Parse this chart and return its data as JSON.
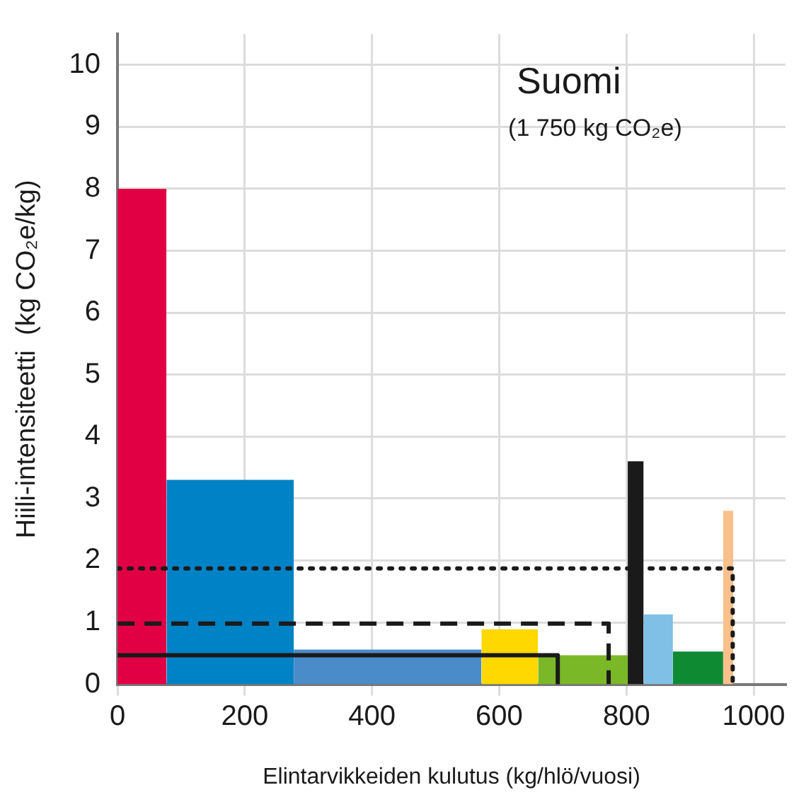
{
  "chart_data": {
    "type": "histogram",
    "xlabel": "Elintarvikkeiden kulutus (kg/hlö/vuosi)",
    "ylabel": "Hiili-intensiteetti  (kg CO₂e/kg)",
    "annotations": [
      "Suomi",
      "(1 750 kg CO₂e)"
    ],
    "bins": [
      0,
      77,
      277,
      572,
      661,
      802,
      827,
      873,
      952,
      968
    ],
    "values": [
      8,
      3.3,
      0.56,
      0.89,
      0.47,
      3.6,
      1.13,
      0.53,
      2.8
    ],
    "colors": [
      "#e20045",
      "#0083c6",
      "#4a8bc9",
      "#ffd800",
      "#7bb828",
      "#1a1a1a",
      "#80bfe6",
      "#0e8a33",
      "#f9c08c"
    ],
    "series": [
      {
        "type": "line",
        "x": [
          0,
          967,
          967
        ],
        "values": [
          1.87,
          1.87,
          0
        ],
        "color": "#1a1a1a",
        "line_style": "dotted"
      },
      {
        "type": "line",
        "x": [
          0,
          772,
          772
        ],
        "values": [
          0.98,
          0.98,
          0
        ],
        "color": "#1a1a1a",
        "line_style": "dashed"
      },
      {
        "type": "line",
        "x": [
          0,
          692,
          692
        ],
        "values": [
          0.47,
          0.47,
          0
        ],
        "color": "#1a1a1a",
        "line_style": "solid"
      }
    ],
    "xlim": [
      0,
      1050
    ],
    "xticks": [
      0,
      200,
      400,
      600,
      800,
      1000
    ],
    "ylim": [
      0,
      10.5
    ],
    "yticks": [
      0,
      1,
      2,
      3,
      4,
      5,
      6,
      7,
      8,
      9,
      10
    ],
    "grid": true,
    "legend": false
  }
}
